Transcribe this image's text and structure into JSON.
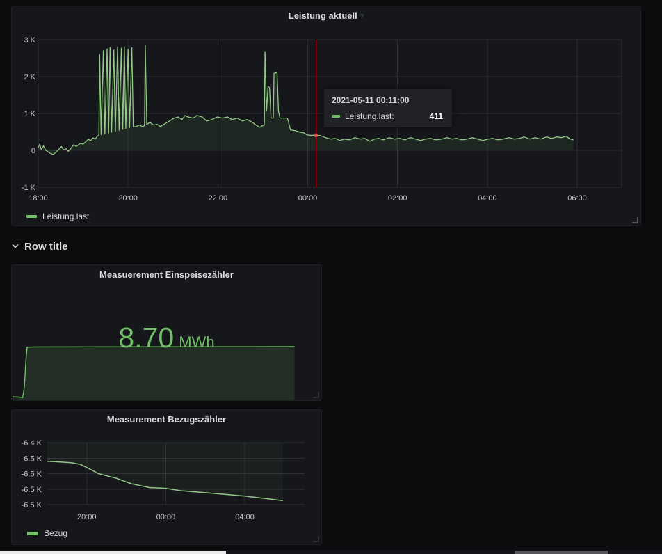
{
  "colors": {
    "green": "#73bf69",
    "line_green": "#94c789",
    "cursor_red": "#e02f44",
    "grid": "#2c2e33"
  },
  "row": {
    "title": "Row title"
  },
  "panels": {
    "leistung": {
      "title": "Leistung aktuell",
      "legend_label": "Leistung.last",
      "tooltip": {
        "timestamp": "2021-05-11 00:11:00",
        "series_label": "Leistung.last:",
        "value": "411"
      }
    },
    "einspeisezaehler": {
      "title": "Measuerement Einspeisezähler",
      "value": "8.70",
      "unit": "MWh"
    },
    "bezugszaehler": {
      "title": "Measurement Bezugszähler",
      "legend_label": "Bezug"
    }
  },
  "chart_data": [
    {
      "id": "leistung-aktuell",
      "type": "line",
      "title": "Leistung aktuell",
      "x_axis": {
        "type": "time",
        "start": "18:00",
        "end": "06:00",
        "tick_interval": "2h"
      },
      "x_ticks": [
        {
          "label": "18:00",
          "t": 0
        },
        {
          "label": "20:00",
          "t": 120
        },
        {
          "label": "22:00",
          "t": 240
        },
        {
          "label": "00:00",
          "t": 360
        },
        {
          "label": "02:00",
          "t": 480
        },
        {
          "label": "04:00",
          "t": 600
        },
        {
          "label": "06:00",
          "t": 720
        }
      ],
      "y_ticks": [
        {
          "label": "3 K",
          "v": 3000
        },
        {
          "label": "2 K",
          "v": 2000
        },
        {
          "label": "1 K",
          "v": 1000
        },
        {
          "label": "0",
          "v": 0
        },
        {
          "label": "-1 K",
          "v": -1000
        }
      ],
      "ylim": [
        -1000,
        3000
      ],
      "grid": true,
      "legend_position": "bottom-left",
      "cursor": {
        "t": 371,
        "time_label": "2021-05-11 00:11:00",
        "value": 411
      },
      "series": [
        {
          "name": "Leistung.last",
          "color": "#73bf69",
          "points": [
            [
              0,
              75
            ],
            [
              2,
              170
            ],
            [
              4,
              20
            ],
            [
              7,
              120
            ],
            [
              10,
              0
            ],
            [
              13,
              -40
            ],
            [
              16,
              -80
            ],
            [
              20,
              -110
            ],
            [
              24,
              -45
            ],
            [
              28,
              35
            ],
            [
              31,
              105
            ],
            [
              34,
              10
            ],
            [
              37,
              45
            ],
            [
              40,
              -30
            ],
            [
              44,
              60
            ],
            [
              47,
              150
            ],
            [
              51,
              110
            ],
            [
              56,
              190
            ],
            [
              60,
              170
            ],
            [
              64,
              245
            ],
            [
              67,
              300
            ],
            [
              70,
              265
            ],
            [
              73,
              340
            ],
            [
              76,
              305
            ],
            [
              79,
              380
            ],
            [
              81,
              420
            ],
            [
              82,
              2600
            ],
            [
              84,
              430
            ],
            [
              87,
              2700
            ],
            [
              89,
              445
            ],
            [
              92,
              2750
            ],
            [
              94,
              470
            ],
            [
              96,
              2790
            ],
            [
              98,
              490
            ],
            [
              101,
              2720
            ],
            [
              103,
              515
            ],
            [
              106,
              2810
            ],
            [
              108,
              545
            ],
            [
              111,
              2770
            ],
            [
              113,
              570
            ],
            [
              115,
              2810
            ],
            [
              117,
              590
            ],
            [
              120,
              2740
            ],
            [
              122,
              615
            ],
            [
              125,
              2780
            ],
            [
              127,
              640
            ],
            [
              131,
              645
            ],
            [
              135,
              685
            ],
            [
              139,
              645
            ],
            [
              142,
              665
            ],
            [
              143,
              2850
            ],
            [
              145,
              700
            ],
            [
              149,
              760
            ],
            [
              154,
              685
            ],
            [
              159,
              705
            ],
            [
              163,
              645
            ],
            [
              168,
              705
            ],
            [
              175,
              790
            ],
            [
              181,
              870
            ],
            [
              187,
              905
            ],
            [
              192,
              835
            ],
            [
              196,
              945
            ],
            [
              200,
              905
            ],
            [
              207,
              875
            ],
            [
              212,
              945
            ],
            [
              219,
              905
            ],
            [
              225,
              795
            ],
            [
              232,
              835
            ],
            [
              239,
              905
            ],
            [
              246,
              875
            ],
            [
              253,
              905
            ],
            [
              259,
              835
            ],
            [
              266,
              875
            ],
            [
              273,
              795
            ],
            [
              279,
              835
            ],
            [
              286,
              760
            ],
            [
              291,
              685
            ],
            [
              296,
              625
            ],
            [
              299,
              665
            ],
            [
              302,
              685
            ],
            [
              303,
              2680
            ],
            [
              305,
              1060
            ],
            [
              307,
              1740
            ],
            [
              309,
              1700
            ],
            [
              311,
              875
            ],
            [
              314,
              880
            ],
            [
              315,
              2090
            ],
            [
              319,
              2110
            ],
            [
              321,
              1060
            ],
            [
              323,
              875
            ],
            [
              333,
              875
            ],
            [
              337,
              555
            ],
            [
              343,
              535
            ],
            [
              349,
              495
            ],
            [
              355,
              475
            ],
            [
              359,
              420
            ],
            [
              365,
              405
            ],
            [
              371,
              411
            ],
            [
              377,
              400
            ],
            [
              384,
              345
            ],
            [
              391,
              305
            ],
            [
              397,
              325
            ],
            [
              403,
              270
            ],
            [
              409,
              305
            ],
            [
              416,
              285
            ],
            [
              423,
              345
            ],
            [
              430,
              305
            ],
            [
              436,
              325
            ],
            [
              443,
              250
            ],
            [
              449,
              305
            ],
            [
              455,
              325
            ],
            [
              461,
              285
            ],
            [
              469,
              345
            ],
            [
              476,
              305
            ],
            [
              483,
              325
            ],
            [
              490,
              285
            ],
            [
              497,
              345
            ],
            [
              504,
              305
            ],
            [
              511,
              270
            ],
            [
              517,
              305
            ],
            [
              524,
              325
            ],
            [
              531,
              285
            ],
            [
              539,
              305
            ],
            [
              546,
              345
            ],
            [
              553,
              305
            ],
            [
              559,
              325
            ],
            [
              566,
              285
            ],
            [
              573,
              305
            ],
            [
              580,
              345
            ],
            [
              587,
              305
            ],
            [
              594,
              270
            ],
            [
              601,
              305
            ],
            [
              607,
              325
            ],
            [
              614,
              285
            ],
            [
              621,
              305
            ],
            [
              629,
              345
            ],
            [
              636,
              305
            ],
            [
              643,
              325
            ],
            [
              649,
              365
            ],
            [
              657,
              305
            ],
            [
              664,
              345
            ],
            [
              671,
              305
            ],
            [
              679,
              365
            ],
            [
              686,
              325
            ],
            [
              693,
              365
            ],
            [
              699,
              345
            ],
            [
              705,
              385
            ],
            [
              711,
              305
            ],
            [
              715,
              285
            ]
          ]
        }
      ]
    },
    {
      "id": "einspeisezaehler",
      "type": "stat",
      "title": "Measuerement Einspeisezähler",
      "value": 8.7,
      "unit": "MWh",
      "sparkline": {
        "color": "#73bf69",
        "points": [
          [
            0,
            0.35
          ],
          [
            15,
            0.3
          ],
          [
            22,
            0.25
          ],
          [
            26,
            0.2
          ],
          [
            30,
            2.0
          ],
          [
            34,
            6.5
          ],
          [
            37,
            8.62
          ],
          [
            60,
            8.65
          ],
          [
            200,
            8.67
          ],
          [
            400,
            8.68
          ],
          [
            716,
            8.7
          ]
        ]
      }
    },
    {
      "id": "bezugszaehler",
      "type": "line",
      "title": "Measurement Bezugszähler",
      "x_ticks": [
        {
          "label": "20:00",
          "t": 120
        },
        {
          "label": "00:00",
          "t": 360
        },
        {
          "label": "04:00",
          "t": 600
        }
      ],
      "y_ticks": [
        {
          "label": "-6.4 K",
          "v": -6440
        },
        {
          "label": "-6.5 K",
          "v": -6460
        },
        {
          "label": "-6.5 K",
          "v": -6480
        },
        {
          "label": "-6.5 K",
          "v": -6500
        },
        {
          "label": "-6.5 K",
          "v": -6520
        }
      ],
      "ylim": [
        -6520,
        -6440
      ],
      "grid": true,
      "legend_position": "bottom-left",
      "series": [
        {
          "name": "Bezug",
          "color": "#73bf69",
          "points": [
            [
              0,
              -6464
            ],
            [
              40,
              -6465
            ],
            [
              75,
              -6466
            ],
            [
              100,
              -6468
            ],
            [
              120,
              -6472
            ],
            [
              155,
              -6480
            ],
            [
              210,
              -6486
            ],
            [
              255,
              -6493
            ],
            [
              310,
              -6498
            ],
            [
              360,
              -6499
            ],
            [
              405,
              -6502
            ],
            [
              490,
              -6505
            ],
            [
              600,
              -6509
            ],
            [
              660,
              -6512
            ],
            [
              716,
              -6515
            ]
          ]
        }
      ]
    }
  ]
}
